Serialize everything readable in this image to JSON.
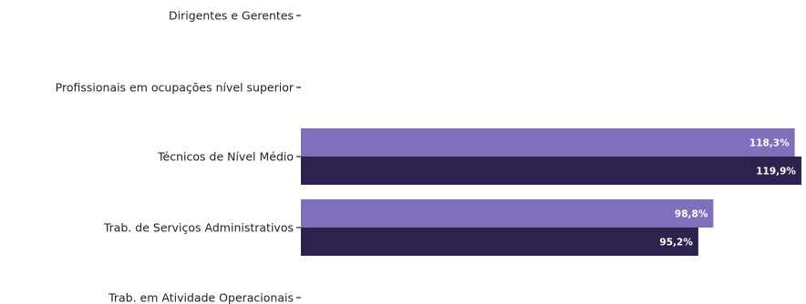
{
  "chart_data": {
    "type": "bar",
    "orientation": "horizontal",
    "categories": [
      "Dirigentes e Gerentes",
      "Profissionais em ocupações nível superior",
      "Técnicos de Nível Médio",
      "Trab. de Serviços Administrativos",
      "Trab. em Atividade Operacionais"
    ],
    "series": [
      {
        "values": [
          null,
          null,
          118.3,
          98.8,
          null
        ],
        "labels": [
          "",
          "",
          "118,3%",
          "98,8%",
          ""
        ],
        "color": "#8070bb"
      },
      {
        "values": [
          null,
          null,
          119.9,
          95.2,
          null
        ],
        "labels": [
          "",
          "",
          "119,9%",
          "95,2%",
          ""
        ],
        "color": "#2d2150"
      }
    ],
    "xlim": [
      0,
      121
    ],
    "title": "",
    "xlabel": "",
    "ylabel": "",
    "grid": false,
    "legend": "none"
  }
}
